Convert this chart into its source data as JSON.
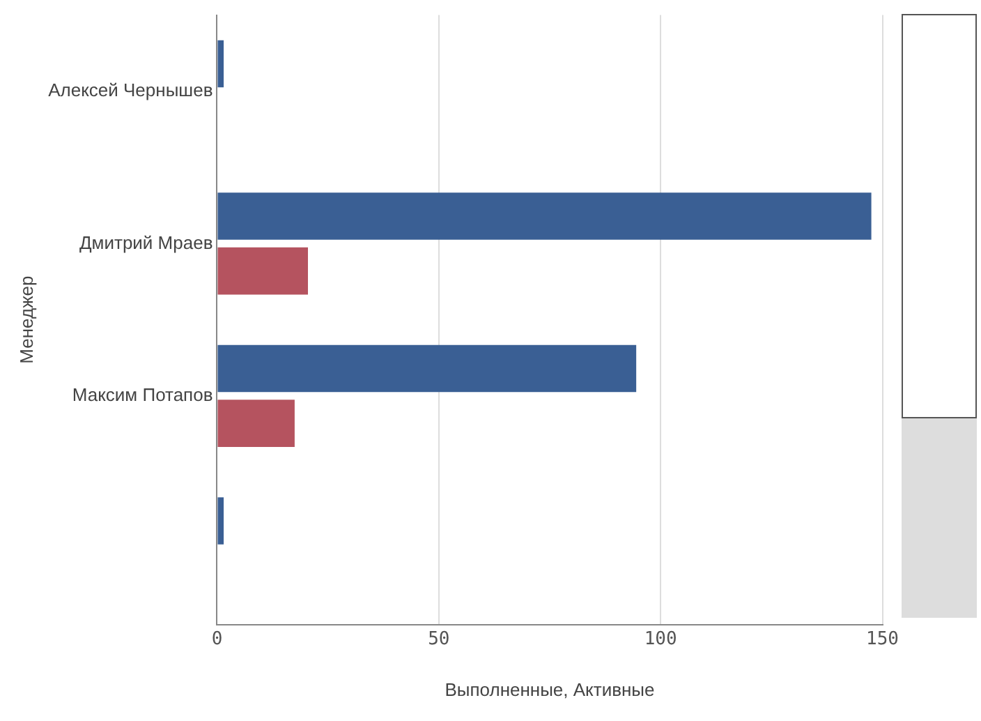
{
  "chart_data": {
    "type": "bar",
    "orientation": "horizontal",
    "xlabel": "Выполненные, Активные",
    "ylabel": "Менеджер",
    "categories": [
      "Алексей Чернышев",
      "Дмитрий Мраев",
      "Максим Потапов",
      null
    ],
    "series": [
      {
        "color": "#3a5f94",
        "values": [
          1.5,
          147.5,
          94.5,
          1.5
        ]
      },
      {
        "color": "#b5535f",
        "values": [
          0,
          20.5,
          17.5,
          null
        ]
      }
    ],
    "xlim": [
      0,
      150
    ],
    "xticks": [
      0,
      50,
      100,
      150
    ],
    "grid": "x",
    "legend": false
  }
}
